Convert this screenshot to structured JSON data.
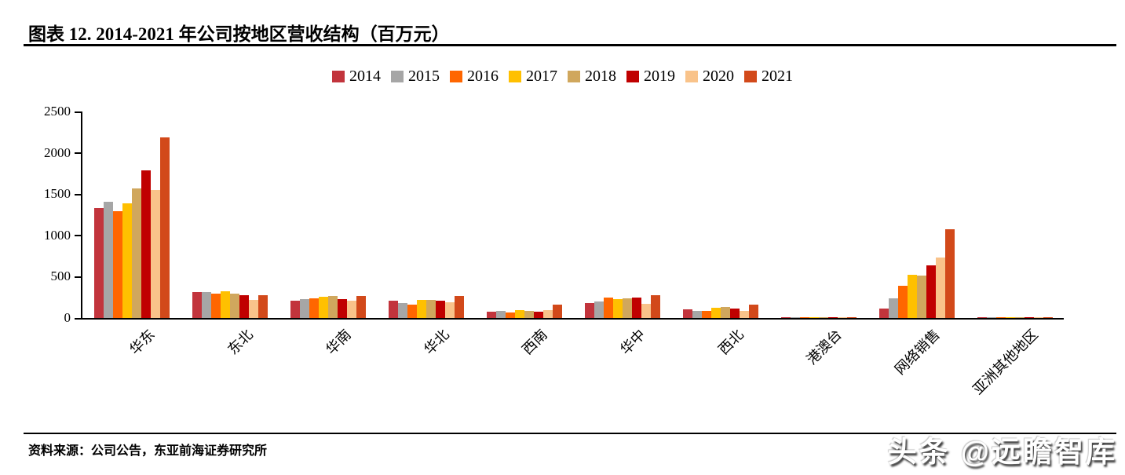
{
  "page": {
    "title": "图表 12. 2014-2021 年公司按地区营收结构（百万元）",
    "source": "资料来源：公司公告，东亚前海证券研究所",
    "watermark": "头条 @远瞻智库"
  },
  "chart_data": {
    "type": "bar",
    "title": "2014-2021 年公司按地区营收结构（百万元）",
    "xlabel": "",
    "ylabel": "",
    "ylim": [
      0,
      2500
    ],
    "yticks": [
      0,
      500,
      1000,
      1500,
      2000,
      2500
    ],
    "grid": false,
    "legend_position": "top",
    "categories": [
      "华东",
      "东北",
      "华南",
      "华北",
      "西南",
      "华中",
      "西北",
      "港澳台",
      "网络销售",
      "亚洲其他地区"
    ],
    "series": [
      {
        "name": "2014",
        "color": "#C2343C",
        "values": [
          1330,
          310,
          205,
          205,
          80,
          185,
          100,
          10,
          110,
          2
        ]
      },
      {
        "name": "2015",
        "color": "#A6A6A6",
        "values": [
          1410,
          315,
          225,
          185,
          90,
          200,
          85,
          8,
          240,
          2
        ]
      },
      {
        "name": "2016",
        "color": "#FF6600",
        "values": [
          1295,
          295,
          235,
          160,
          70,
          250,
          90,
          12,
          385,
          3
        ]
      },
      {
        "name": "2017",
        "color": "#FFC000",
        "values": [
          1385,
          320,
          255,
          215,
          95,
          230,
          120,
          8,
          520,
          5
        ]
      },
      {
        "name": "2018",
        "color": "#D0A75D",
        "values": [
          1570,
          290,
          265,
          215,
          85,
          240,
          135,
          5,
          510,
          4
        ]
      },
      {
        "name": "2019",
        "color": "#C00000",
        "values": [
          1790,
          275,
          230,
          210,
          80,
          245,
          115,
          8,
          640,
          5
        ]
      },
      {
        "name": "2020",
        "color": "#F9C38A",
        "values": [
          1545,
          215,
          210,
          190,
          95,
          170,
          85,
          5,
          730,
          8
        ]
      },
      {
        "name": "2021",
        "color": "#D2491A",
        "values": [
          2190,
          280,
          270,
          265,
          165,
          280,
          165,
          12,
          1070,
          12
        ]
      }
    ]
  }
}
